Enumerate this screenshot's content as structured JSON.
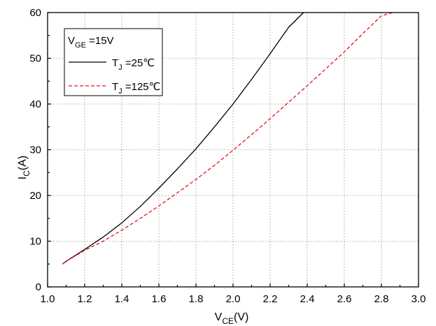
{
  "chart_data": {
    "type": "line",
    "xlabel": {
      "main": "V",
      "sub": "CE",
      "unit": "(V)"
    },
    "ylabel": {
      "main": "I",
      "sub": "C",
      "unit": "(A)"
    },
    "xlim": [
      1.0,
      3.0
    ],
    "ylim": [
      0,
      60
    ],
    "xticks": [
      "1.0",
      "1.2",
      "1.4",
      "1.6",
      "1.8",
      "2.0",
      "2.2",
      "2.4",
      "2.6",
      "2.8",
      "3.0"
    ],
    "yticks": [
      "0",
      "10",
      "20",
      "30",
      "40",
      "50",
      "60"
    ],
    "grid": true,
    "legend": {
      "placement": "top-left",
      "header": {
        "main": "V",
        "sub": "GE",
        "rest": " =15V"
      }
    },
    "series": [
      {
        "label_main": "T",
        "label_sub": "J",
        "label_rest": " =25℃",
        "color": "#000000",
        "dash": "solid",
        "x": [
          1.08,
          1.1,
          1.2,
          1.3,
          1.4,
          1.5,
          1.6,
          1.7,
          1.8,
          1.9,
          2.0,
          2.1,
          2.2,
          2.3,
          2.38
        ],
        "y": [
          5,
          5.6,
          8.2,
          10.9,
          14.0,
          17.6,
          21.6,
          25.8,
          30.2,
          35.0,
          40.0,
          45.4,
          51.0,
          56.8,
          60
        ]
      },
      {
        "label_main": "T",
        "label_sub": "J",
        "label_rest": " =125℃",
        "color": "#e8101c",
        "dash": "dashed",
        "x": [
          1.08,
          1.1,
          1.2,
          1.3,
          1.4,
          1.5,
          1.6,
          1.7,
          1.8,
          1.9,
          2.0,
          2.1,
          2.2,
          2.3,
          2.4,
          2.5,
          2.6,
          2.7,
          2.8,
          2.86
        ],
        "y": [
          5,
          5.6,
          8.0,
          10.0,
          12.4,
          15.0,
          17.7,
          20.6,
          23.5,
          26.6,
          29.9,
          33.3,
          36.8,
          40.4,
          44.0,
          47.7,
          51.4,
          55.4,
          59.3,
          60
        ]
      }
    ]
  }
}
